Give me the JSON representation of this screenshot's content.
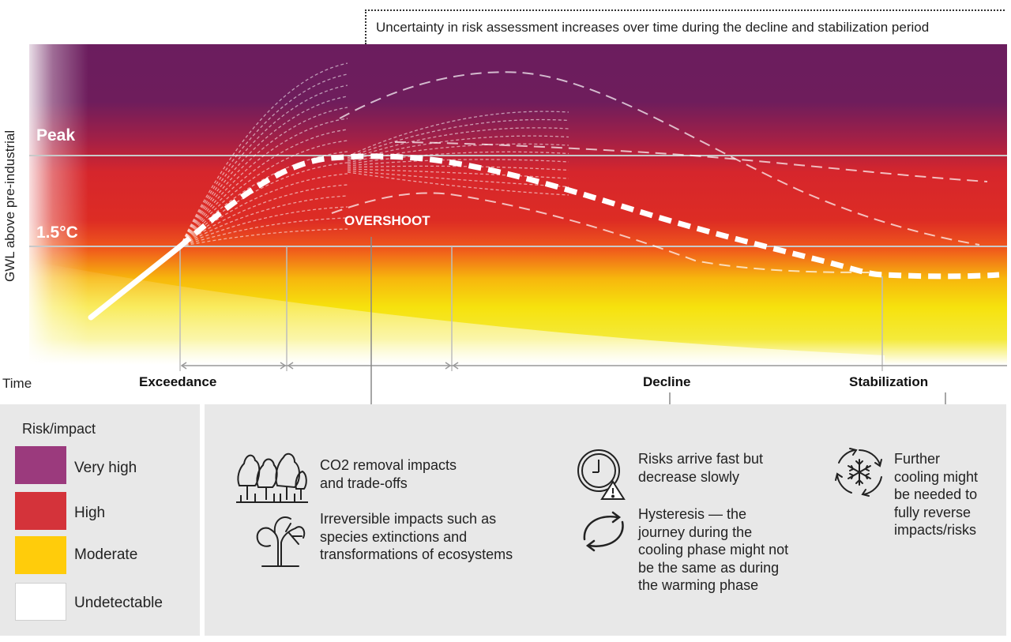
{
  "header": {
    "uncertainty_note": "Uncertainty in risk assessment increases over time during the decline and stabilization period"
  },
  "chart": {
    "y_axis_label": "GWL above pre-industrial",
    "x_axis_label": "Time",
    "level_labels": {
      "peak": "Peak",
      "threshold": "1.5°C"
    },
    "overshoot_label": "OVERSHOOT",
    "phases": {
      "exceedance": "Exceedance",
      "decline": "Decline",
      "stabilization": "Stabilization"
    },
    "band_colors": {
      "very_high": "#6b1d5e",
      "high": "#d6262c",
      "moderate": "#f2e20c",
      "undetectable": "#ffffff"
    }
  },
  "legend": {
    "title": "Risk/impact",
    "items": [
      {
        "label": "Very high",
        "color": "#9b3a7d"
      },
      {
        "label": "High",
        "color": "#d4333a"
      },
      {
        "label": "Moderate",
        "color": "#ffcc0b"
      },
      {
        "label": "Undetectable",
        "color": "#ffffff"
      }
    ]
  },
  "notes": {
    "co2": {
      "icon": "forest-icon",
      "text": [
        "CO2 removal impacts",
        "and trade-offs"
      ]
    },
    "irreversible": {
      "icon": "dead-tree-icon",
      "text": [
        "Irreversible impacts such as",
        "species extinctions and",
        "transformations of ecosystems"
      ]
    },
    "risks": {
      "icon": "clock-warning-icon",
      "text": [
        "Risks arrive fast but",
        "decrease slowly"
      ]
    },
    "hysteresis": {
      "icon": "cycle-arrows-icon",
      "text": [
        "Hysteresis — the",
        "journey during the",
        "cooling phase might not",
        "be the same as during",
        "the warming phase"
      ]
    },
    "cooling": {
      "icon": "snowflake-cycle-icon",
      "text": [
        "Further",
        "cooling might",
        "be needed to",
        "fully reverse",
        "impacts/risks"
      ]
    }
  }
}
